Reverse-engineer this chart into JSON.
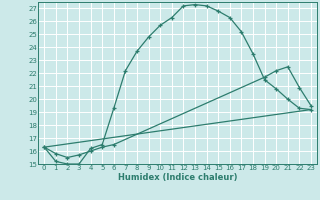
{
  "xlabel": "Humidex (Indice chaleur)",
  "bg_color": "#cce9e9",
  "line_color": "#2d7d6e",
  "grid_color": "#ffffff",
  "xlim": [
    -0.5,
    23.5
  ],
  "ylim": [
    15,
    27.5
  ],
  "yticks": [
    15,
    16,
    17,
    18,
    19,
    20,
    21,
    22,
    23,
    24,
    25,
    26,
    27
  ],
  "xticks": [
    0,
    1,
    2,
    3,
    4,
    5,
    6,
    7,
    8,
    9,
    10,
    11,
    12,
    13,
    14,
    15,
    16,
    17,
    18,
    19,
    20,
    21,
    22,
    23
  ],
  "line1_x": [
    0,
    1,
    2,
    3,
    4,
    5,
    6,
    7,
    8,
    9,
    10,
    11,
    12,
    13,
    14,
    15,
    16,
    17,
    18,
    19,
    20,
    21,
    22,
    23
  ],
  "line1_y": [
    16.3,
    15.2,
    15.0,
    15.0,
    16.2,
    16.5,
    19.3,
    22.2,
    23.7,
    24.8,
    25.7,
    26.3,
    27.2,
    27.3,
    27.2,
    26.8,
    26.3,
    25.2,
    23.5,
    21.5,
    20.8,
    20.0,
    19.3,
    19.2
  ],
  "line2_x": [
    0,
    1,
    2,
    3,
    4,
    5,
    6,
    19,
    20,
    21,
    22,
    23
  ],
  "line2_y": [
    16.3,
    15.8,
    15.5,
    15.7,
    16.0,
    16.3,
    16.5,
    21.7,
    22.2,
    22.5,
    20.9,
    19.5
  ],
  "line3_x": [
    0,
    23
  ],
  "line3_y": [
    16.3,
    19.2
  ]
}
